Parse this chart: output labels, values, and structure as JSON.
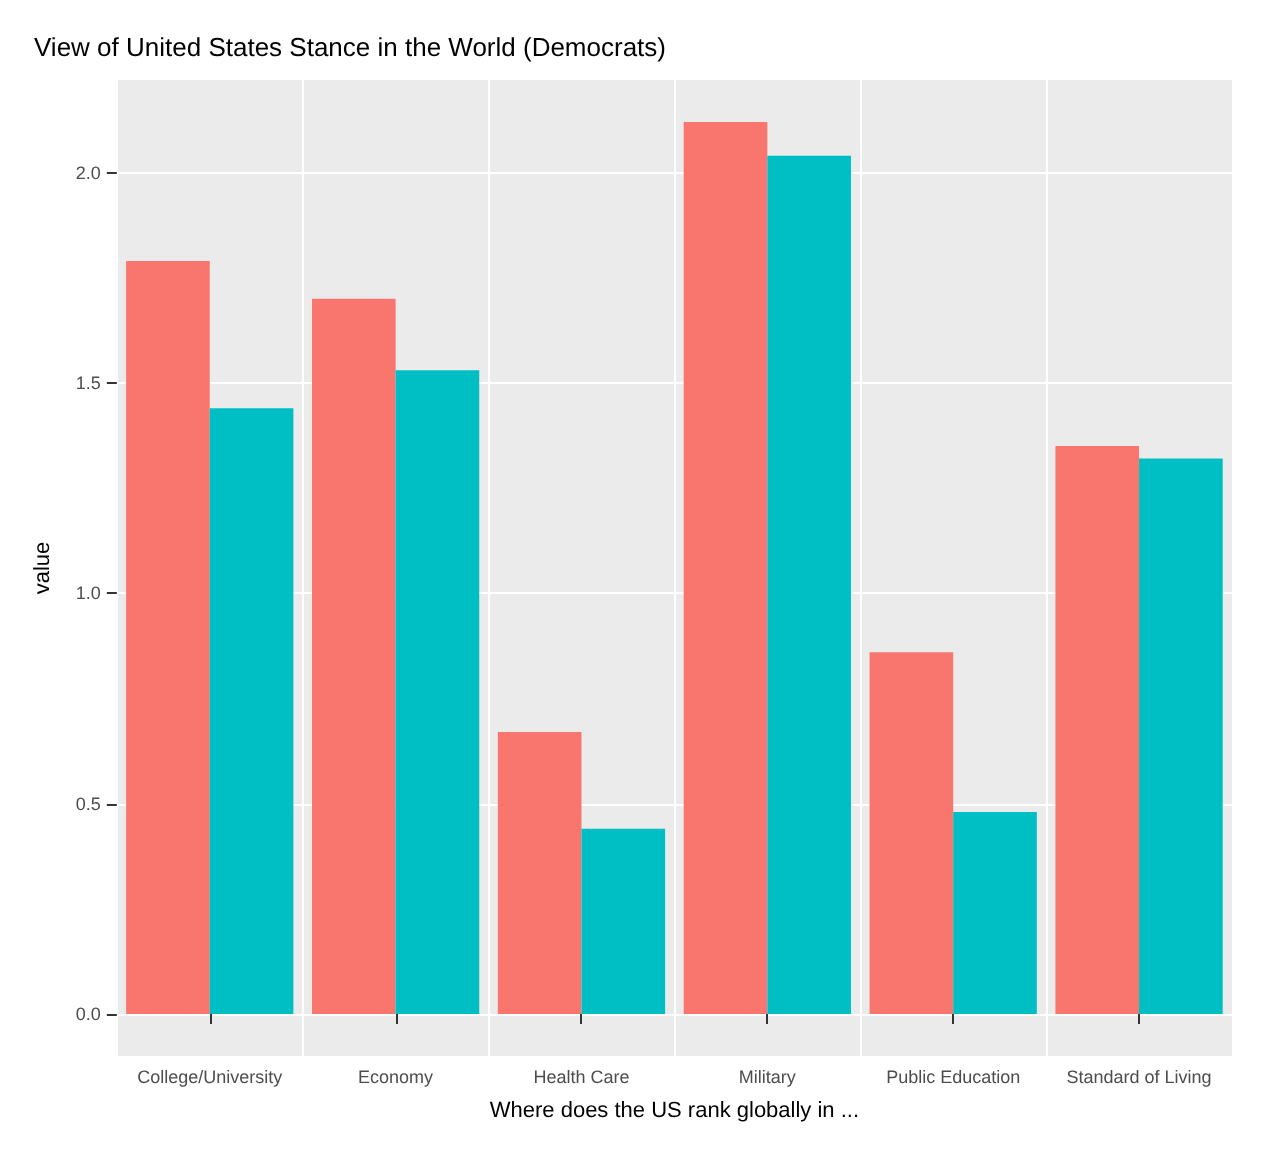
{
  "chart_data": {
    "type": "bar",
    "title": "View of United States Stance in the World (Democrats)",
    "xlabel": "Where does the US rank globally in ...",
    "ylabel": "value",
    "categories": [
      "College/University",
      "Economy",
      "Health Care",
      "Military",
      "Public Education",
      "Standard of Living"
    ],
    "series": [
      {
        "color": "#f8766d",
        "values": [
          1.79,
          1.7,
          0.67,
          2.12,
          0.86,
          1.35
        ]
      },
      {
        "color": "#00bfc4",
        "values": [
          1.44,
          1.53,
          0.44,
          2.04,
          0.48,
          1.32
        ]
      }
    ],
    "ylim": [
      -0.1,
      2.22
    ],
    "yticks": [
      {
        "value": 0,
        "label": "0.0"
      },
      {
        "value": 0.5,
        "label": "0.5"
      },
      {
        "value": 1,
        "label": "1.0"
      },
      {
        "value": 1.5,
        "label": "1.5"
      },
      {
        "value": 2,
        "label": "2.0"
      }
    ],
    "grid": true
  }
}
